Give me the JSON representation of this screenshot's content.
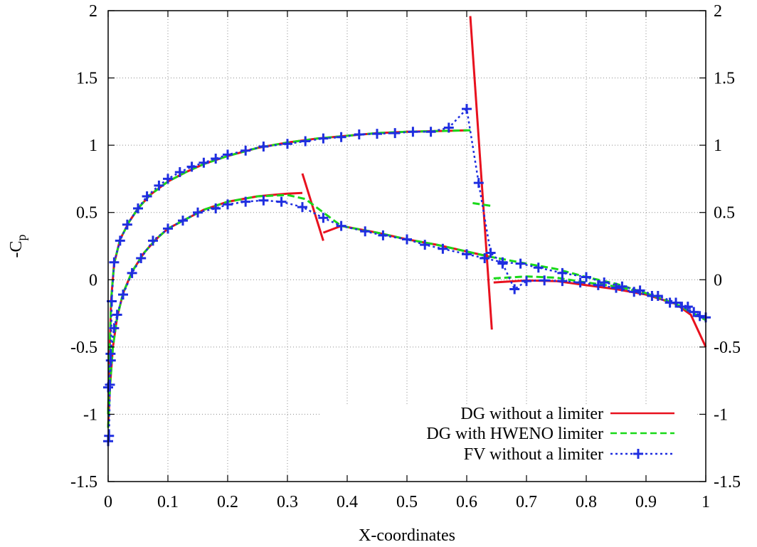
{
  "chart_data": {
    "type": "line",
    "title": "",
    "xlabel": "X-coordinates",
    "ylabel": "-C",
    "ylabel_subscript": "p",
    "xlim": [
      0,
      1
    ],
    "ylim": [
      -1.5,
      2
    ],
    "x_ticks": [
      0,
      0.1,
      0.2,
      0.3,
      0.4,
      0.5,
      0.6,
      0.7,
      0.8,
      0.9,
      1
    ],
    "x_tick_labels": [
      "0",
      "0.1",
      "0.2",
      "0.3",
      "0.4",
      "0.5",
      "0.6",
      "0.7",
      "0.8",
      "0.9",
      "1"
    ],
    "y_ticks": [
      -1.5,
      -1,
      -0.5,
      0,
      0.5,
      1,
      1.5,
      2
    ],
    "y_tick_labels": [
      "-1.5",
      "-1",
      "-0.5",
      "0",
      "0.5",
      "1",
      "1.5",
      "2"
    ],
    "grid": true,
    "legend_position": "bottom-right",
    "colors": {
      "dg": "#e8111e",
      "hweno": "#19d919",
      "fv": "#1f2ee0"
    },
    "series": [
      {
        "name": "DG without a limiter",
        "style": "solid",
        "color": "#e8111e",
        "segments": [
          [
            [
              0.0,
              -1.0
            ],
            [
              0.002,
              -0.6
            ],
            [
              0.005,
              -0.15
            ],
            [
              0.01,
              0.12
            ],
            [
              0.02,
              0.3
            ],
            [
              0.035,
              0.43
            ],
            [
              0.05,
              0.53
            ],
            [
              0.07,
              0.63
            ],
            [
              0.1,
              0.73
            ],
            [
              0.13,
              0.8
            ],
            [
              0.16,
              0.86
            ],
            [
              0.2,
              0.92
            ],
            [
              0.25,
              0.98
            ],
            [
              0.3,
              1.02
            ],
            [
              0.35,
              1.05
            ],
            [
              0.4,
              1.07
            ],
            [
              0.45,
              1.09
            ],
            [
              0.5,
              1.1
            ],
            [
              0.55,
              1.105
            ],
            [
              0.6,
              1.11
            ]
          ],
          [
            [
              0.606,
              1.96
            ],
            [
              0.642,
              -0.37
            ]
          ],
          [
            [
              0.0,
              -1.1
            ],
            [
              0.003,
              -0.8
            ],
            [
              0.008,
              -0.5
            ],
            [
              0.015,
              -0.28
            ],
            [
              0.025,
              -0.1
            ],
            [
              0.04,
              0.06
            ],
            [
              0.06,
              0.2
            ],
            [
              0.08,
              0.3
            ],
            [
              0.1,
              0.38
            ],
            [
              0.13,
              0.45
            ],
            [
              0.16,
              0.52
            ],
            [
              0.2,
              0.58
            ],
            [
              0.25,
              0.62
            ],
            [
              0.3,
              0.64
            ],
            [
              0.325,
              0.645
            ]
          ],
          [
            [
              0.325,
              0.79
            ],
            [
              0.36,
              0.29
            ]
          ],
          [
            [
              0.36,
              0.35
            ],
            [
              0.39,
              0.4
            ],
            [
              0.45,
              0.35
            ],
            [
              0.5,
              0.3
            ],
            [
              0.55,
              0.26
            ],
            [
              0.6,
              0.21
            ],
            [
              0.64,
              0.17
            ]
          ],
          [
            [
              0.645,
              -0.02
            ],
            [
              0.7,
              -0.005
            ],
            [
              0.75,
              -0.01
            ],
            [
              0.8,
              -0.04
            ],
            [
              0.85,
              -0.07
            ],
            [
              0.9,
              -0.11
            ],
            [
              0.95,
              -0.18
            ],
            [
              0.975,
              -0.26
            ],
            [
              1.0,
              -0.5
            ]
          ]
        ]
      },
      {
        "name": "DG with HWENO limiter",
        "style": "dashed",
        "color": "#19d919",
        "segments": [
          [
            [
              0.0,
              -1.0
            ],
            [
              0.002,
              -0.6
            ],
            [
              0.005,
              -0.15
            ],
            [
              0.01,
              0.12
            ],
            [
              0.02,
              0.3
            ],
            [
              0.035,
              0.43
            ],
            [
              0.05,
              0.53
            ],
            [
              0.07,
              0.63
            ],
            [
              0.1,
              0.73
            ],
            [
              0.13,
              0.8
            ],
            [
              0.16,
              0.86
            ],
            [
              0.2,
              0.92
            ],
            [
              0.25,
              0.98
            ],
            [
              0.3,
              1.02
            ],
            [
              0.35,
              1.05
            ],
            [
              0.4,
              1.07
            ],
            [
              0.45,
              1.09
            ],
            [
              0.5,
              1.1
            ],
            [
              0.55,
              1.105
            ],
            [
              0.6,
              1.11
            ],
            [
              0.61,
              1.11
            ]
          ],
          [
            [
              0.61,
              0.57
            ],
            [
              0.64,
              0.55
            ]
          ],
          [
            [
              0.0,
              -1.1
            ],
            [
              0.003,
              -0.8
            ],
            [
              0.008,
              -0.5
            ],
            [
              0.015,
              -0.28
            ],
            [
              0.025,
              -0.1
            ],
            [
              0.04,
              0.06
            ],
            [
              0.06,
              0.2
            ],
            [
              0.08,
              0.3
            ],
            [
              0.1,
              0.38
            ],
            [
              0.13,
              0.45
            ],
            [
              0.16,
              0.52
            ],
            [
              0.2,
              0.58
            ],
            [
              0.25,
              0.62
            ],
            [
              0.3,
              0.63
            ],
            [
              0.33,
              0.6
            ],
            [
              0.36,
              0.5
            ],
            [
              0.39,
              0.4
            ],
            [
              0.45,
              0.35
            ],
            [
              0.5,
              0.3
            ],
            [
              0.55,
              0.26
            ],
            [
              0.6,
              0.21
            ],
            [
              0.64,
              0.17
            ],
            [
              0.7,
              0.12
            ],
            [
              0.75,
              0.08
            ],
            [
              0.8,
              0.02
            ],
            [
              0.85,
              -0.03
            ],
            [
              0.9,
              -0.1
            ],
            [
              0.95,
              -0.18
            ],
            [
              1.0,
              -0.3
            ]
          ],
          [
            [
              0.645,
              0.01
            ],
            [
              0.7,
              0.025
            ],
            [
              0.75,
              0.015
            ],
            [
              0.8,
              -0.02
            ],
            [
              0.85,
              -0.05
            ],
            [
              0.9,
              -0.1
            ]
          ]
        ]
      },
      {
        "name": "FV without a limiter",
        "style": "dotted",
        "color": "#1f2ee0",
        "markers": "plus",
        "segments": [
          [
            [
              0.0,
              -1.2
            ],
            [
              0.0015,
              -1.16
            ],
            [
              0.003,
              -0.78
            ],
            [
              0.0045,
              -0.6
            ],
            [
              0.006,
              -0.16
            ],
            [
              0.01,
              0.13
            ],
            [
              0.02,
              0.29
            ],
            [
              0.032,
              0.41
            ],
            [
              0.05,
              0.53
            ],
            [
              0.065,
              0.62
            ],
            [
              0.085,
              0.7
            ],
            [
              0.1,
              0.75
            ],
            [
              0.12,
              0.8
            ],
            [
              0.14,
              0.84
            ],
            [
              0.16,
              0.87
            ],
            [
              0.18,
              0.9
            ],
            [
              0.2,
              0.93
            ],
            [
              0.23,
              0.96
            ],
            [
              0.26,
              0.99
            ],
            [
              0.3,
              1.01
            ],
            [
              0.33,
              1.03
            ],
            [
              0.36,
              1.05
            ],
            [
              0.39,
              1.06
            ],
            [
              0.42,
              1.08
            ],
            [
              0.45,
              1.085
            ],
            [
              0.48,
              1.09
            ],
            [
              0.51,
              1.1
            ],
            [
              0.54,
              1.1
            ],
            [
              0.57,
              1.13
            ],
            [
              0.6,
              1.27
            ],
            [
              0.62,
              0.72
            ],
            [
              0.64,
              0.2
            ],
            [
              0.66,
              0.12
            ],
            [
              0.68,
              -0.07
            ],
            [
              0.7,
              -0.01
            ],
            [
              0.73,
              -0.005
            ],
            [
              0.76,
              -0.01
            ],
            [
              0.79,
              -0.02
            ],
            [
              0.82,
              -0.04
            ],
            [
              0.85,
              -0.06
            ],
            [
              0.88,
              -0.09
            ],
            [
              0.91,
              -0.12
            ],
            [
              0.94,
              -0.17
            ],
            [
              0.96,
              -0.2
            ],
            [
              0.98,
              -0.24
            ],
            [
              1.0,
              -0.28
            ]
          ],
          [
            [
              0.0,
              -0.8
            ],
            [
              0.004,
              -0.55
            ],
            [
              0.01,
              -0.36
            ],
            [
              0.015,
              -0.26
            ],
            [
              0.025,
              -0.11
            ],
            [
              0.04,
              0.05
            ],
            [
              0.055,
              0.16
            ],
            [
              0.075,
              0.29
            ],
            [
              0.1,
              0.38
            ],
            [
              0.125,
              0.44
            ],
            [
              0.15,
              0.5
            ],
            [
              0.18,
              0.53
            ],
            [
              0.2,
              0.56
            ],
            [
              0.23,
              0.58
            ],
            [
              0.26,
              0.59
            ],
            [
              0.29,
              0.58
            ],
            [
              0.325,
              0.54
            ],
            [
              0.36,
              0.46
            ],
            [
              0.39,
              0.4
            ],
            [
              0.43,
              0.36
            ],
            [
              0.46,
              0.33
            ],
            [
              0.5,
              0.3
            ],
            [
              0.53,
              0.26
            ],
            [
              0.56,
              0.23
            ],
            [
              0.6,
              0.19
            ],
            [
              0.63,
              0.16
            ],
            [
              0.66,
              0.13
            ],
            [
              0.69,
              0.12
            ],
            [
              0.72,
              0.09
            ],
            [
              0.76,
              0.05
            ],
            [
              0.8,
              0.02
            ],
            [
              0.83,
              -0.02
            ],
            [
              0.86,
              -0.05
            ],
            [
              0.89,
              -0.08
            ],
            [
              0.92,
              -0.12
            ],
            [
              0.95,
              -0.17
            ],
            [
              0.97,
              -0.2
            ],
            [
              0.99,
              -0.27
            ]
          ]
        ]
      }
    ]
  }
}
